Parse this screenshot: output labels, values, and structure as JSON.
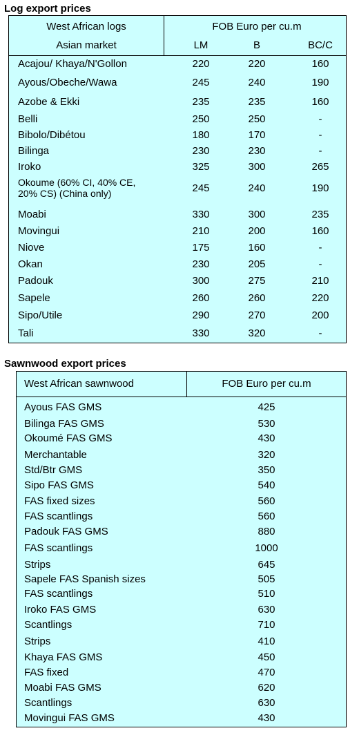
{
  "logs": {
    "title": "Log export prices",
    "header": {
      "col1_line1": "West African logs",
      "col1_line2": "Asian market",
      "price_group": "FOB Euro per cu.m",
      "grades": [
        "LM",
        "B",
        "BC/C"
      ]
    },
    "rows": [
      {
        "name": "Acajou/ Khaya/N'Gollon",
        "lm": "220",
        "b": "220",
        "bcc": "160"
      },
      {
        "name": "Ayous/Obeche/Wawa",
        "lm": "245",
        "b": "240",
        "bcc": "190"
      },
      {
        "name": "Azobe & Ekki",
        "lm": "235",
        "b": "235",
        "bcc": "160"
      },
      {
        "name": "Belli",
        "lm": "250",
        "b": "250",
        "bcc": "-"
      },
      {
        "name": "Bibolo/Dibétou",
        "lm": "180",
        "b": "170",
        "bcc": "-"
      },
      {
        "name": "Bilinga",
        "lm": "230",
        "b": "230",
        "bcc": "-"
      },
      {
        "name": "Iroko",
        "lm": "325",
        "b": "300",
        "bcc": "265"
      },
      {
        "name": "Okoume (60% CI, 40% CE,\n20% CS) (China only)",
        "lm": "245",
        "b": "240",
        "bcc": "190"
      },
      {
        "name": "Moabi",
        "lm": "330",
        "b": "300",
        "bcc": "235"
      },
      {
        "name": "Movingui",
        "lm": "210",
        "b": "200",
        "bcc": "160"
      },
      {
        "name": "Niove",
        "lm": "175",
        "b": "160",
        "bcc": "-"
      },
      {
        "name": "Okan",
        "lm": "230",
        "b": "205",
        "bcc": "-"
      },
      {
        "name": "Padouk",
        "lm": "300",
        "b": "275",
        "bcc": "210"
      },
      {
        "name": "Sapele",
        "lm": "260",
        "b": "260",
        "bcc": "220"
      },
      {
        "name": "Sipo/Utile",
        "lm": "290",
        "b": "270",
        "bcc": "200"
      },
      {
        "name": "Tali",
        "lm": "330",
        "b": "320",
        "bcc": "-"
      }
    ]
  },
  "sawnwood": {
    "title": "Sawnwood export prices",
    "header": {
      "col1": "West African sawnwood",
      "col2": "FOB Euro per cu.m"
    },
    "rows": [
      {
        "name": "Ayous FAS GMS",
        "price": "425"
      },
      {
        "name": "Bilinga FAS GMS",
        "price": "530"
      },
      {
        "name": "Okoumé FAS GMS",
        "price": "430"
      },
      {
        "name": "Merchantable",
        "price": "320"
      },
      {
        "name": "Std/Btr GMS",
        "price": "350"
      },
      {
        "name": "Sipo FAS GMS",
        "price": "540"
      },
      {
        "name": "FAS fixed sizes",
        "price": "560"
      },
      {
        "name": "FAS scantlings",
        "price": "560"
      },
      {
        "name": "Padouk FAS GMS",
        "price": "880"
      },
      {
        "name": "FAS scantlings",
        "price": "1000"
      },
      {
        "name": "Strips",
        "price": "645"
      },
      {
        "name": "Sapele FAS Spanish sizes",
        "price": "505"
      },
      {
        "name": "FAS scantlings",
        "price": "510"
      },
      {
        "name": "Iroko FAS GMS",
        "price": "630"
      },
      {
        "name": "Scantlings",
        "price": "710"
      },
      {
        "name": "Strips",
        "price": "410"
      },
      {
        "name": "Khaya FAS GMS",
        "price": "450"
      },
      {
        "name": "FAS fixed",
        "price": "470"
      },
      {
        "name": "Moabi FAS GMS",
        "price": "620"
      },
      {
        "name": "Scantlings",
        "price": "630"
      },
      {
        "name": "Movingui FAS GMS",
        "price": "430"
      }
    ]
  },
  "colors": {
    "table_background": "#ccffff",
    "border": "#000000"
  }
}
